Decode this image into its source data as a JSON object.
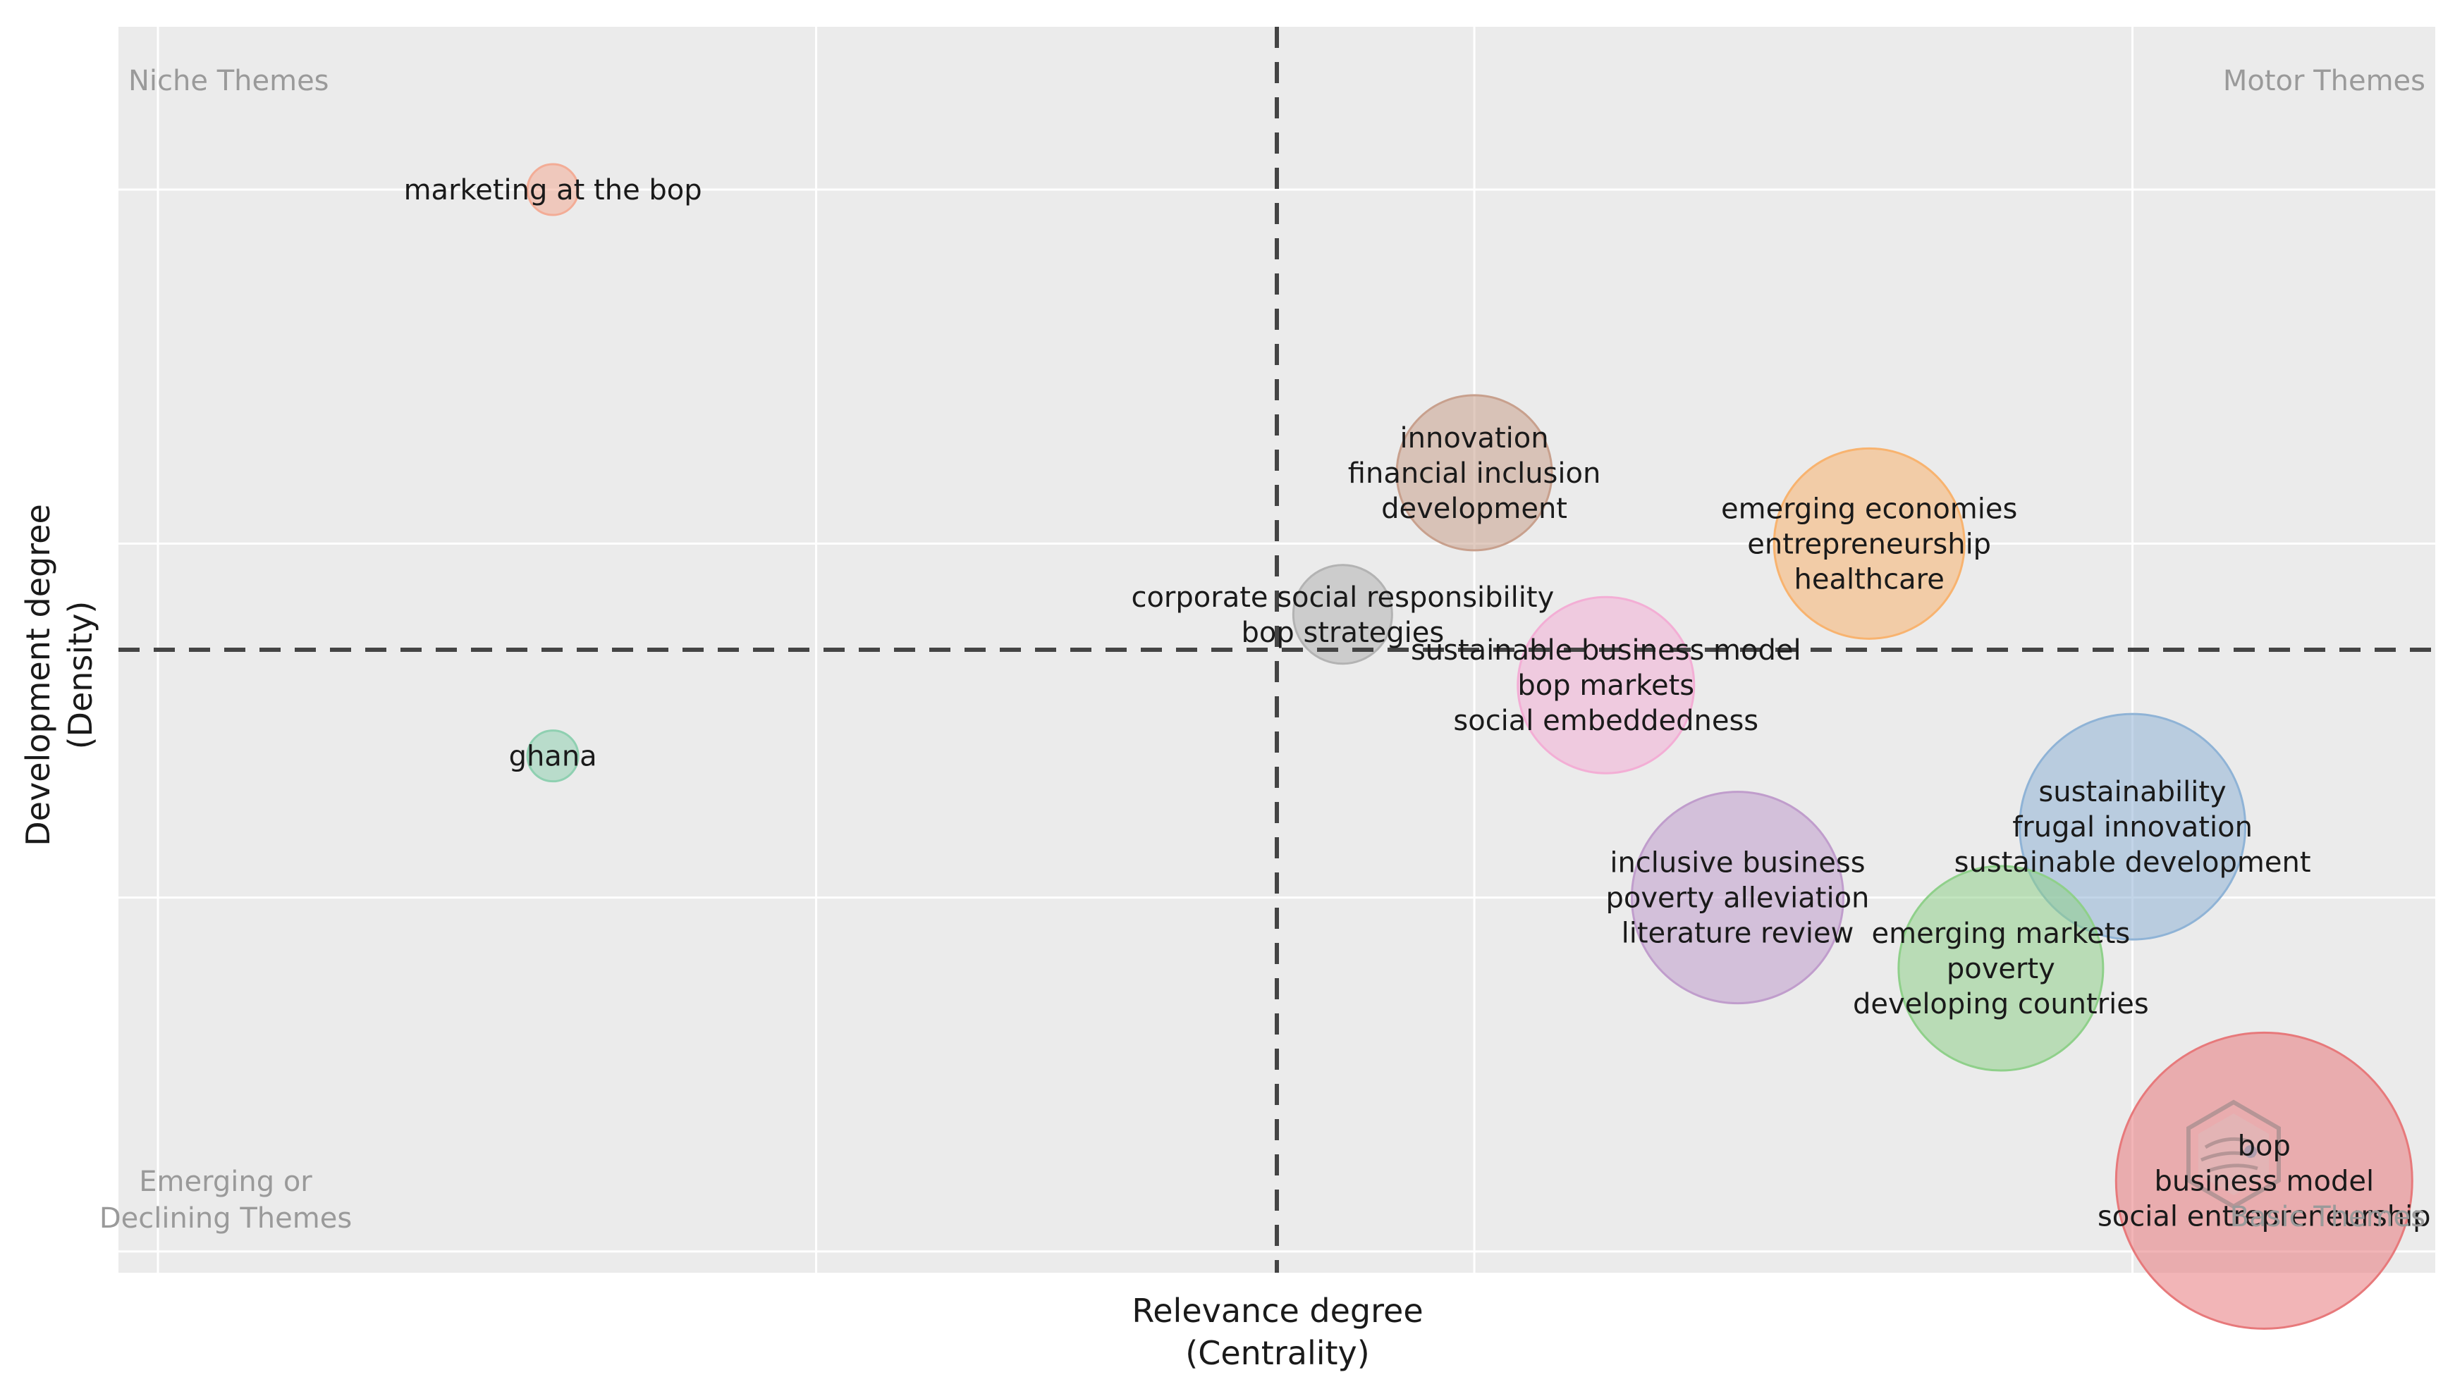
{
  "chart_data": {
    "type": "scatter",
    "subtype": "bubble",
    "title": "",
    "xlabel": [
      "Relevance degree",
      "(Centrality)"
    ],
    "ylabel": [
      "Development degree",
      "(Density)"
    ],
    "xlim": [
      -0.06,
      3.46
    ],
    "ylim": [
      -0.06,
      3.46
    ],
    "grid": true,
    "xgrid": [
      0,
      1,
      2,
      3
    ],
    "ygrid": [
      0,
      1,
      2,
      3
    ],
    "x_reference": 1.7,
    "y_reference": 1.7,
    "quadrants": [
      {
        "name": "quadrant-niche",
        "text": [
          "Niche Themes"
        ],
        "position": "top-left"
      },
      {
        "name": "quadrant-motor",
        "text": [
          "Motor Themes"
        ],
        "position": "top-right"
      },
      {
        "name": "quadrant-emerging",
        "text": [
          "Emerging or",
          "Declining Themes"
        ],
        "position": "bottom-left"
      },
      {
        "name": "quadrant-basic",
        "text": [
          "Basic Themes"
        ],
        "position": "bottom-right"
      }
    ],
    "series": [
      {
        "name": "bop",
        "labels": [
          "bop",
          "business model",
          "social entrepreneurship"
        ],
        "x": 3.2,
        "y": 0.2,
        "size": 210,
        "color": "#e7797b"
      },
      {
        "name": "sustainability",
        "labels": [
          "sustainability",
          "frugal innovation",
          "sustainable development"
        ],
        "x": 3.0,
        "y": 1.2,
        "size": 160,
        "color": "#8fb3d6"
      },
      {
        "name": "emerging markets",
        "labels": [
          "emerging markets",
          "poverty",
          "developing countries"
        ],
        "x": 2.8,
        "y": 0.8,
        "size": 145,
        "color": "#8fd08a"
      },
      {
        "name": "inclusive business",
        "labels": [
          "inclusive business",
          "poverty alleviation",
          "literature review"
        ],
        "x": 2.4,
        "y": 1.0,
        "size": 150,
        "color": "#c09dcc"
      },
      {
        "name": "emerging economies",
        "labels": [
          "emerging economies",
          "entrepreneurship",
          "healthcare"
        ],
        "x": 2.6,
        "y": 2.0,
        "size": 135,
        "color": "#f8b36f"
      },
      {
        "name": "sustainable business model",
        "labels": [
          "sustainable business model",
          "bop markets",
          "social embeddedness"
        ],
        "x": 2.2,
        "y": 1.6,
        "size": 125,
        "color": "#f3aed5"
      },
      {
        "name": "innovation",
        "labels": [
          "innovation",
          "financial inclusion",
          "development"
        ],
        "x": 2.0,
        "y": 2.2,
        "size": 110,
        "color": "#c8a08d"
      },
      {
        "name": "corporate social responsibility",
        "labels": [
          "corporate social responsibility",
          "bop strategies"
        ],
        "x": 1.8,
        "y": 1.8,
        "size": 70,
        "color": "#b3b3b3"
      },
      {
        "name": "marketing at the bop",
        "labels": [
          "marketing at the bop"
        ],
        "x": 0.6,
        "y": 3.0,
        "size": 36,
        "color": "#f3ac96"
      },
      {
        "name": "ghana",
        "labels": [
          "ghana"
        ],
        "x": 0.6,
        "y": 1.4,
        "size": 36,
        "color": "#8fd0b1"
      }
    ]
  }
}
